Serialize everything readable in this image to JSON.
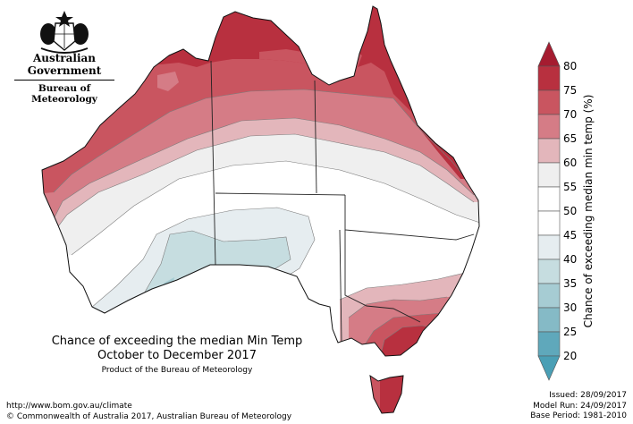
{
  "header": {
    "government": "Australian Government",
    "bureau": "Bureau of Meteorology"
  },
  "map": {
    "title_line1": "Chance of exceeding the median Min Temp",
    "title_line2": "October to December 2017",
    "product_line": "Product of the Bureau of Meteorology"
  },
  "legend": {
    "label": "Chance of exceeding median min temp (%)",
    "ticks": [
      "80",
      "75",
      "70",
      "65",
      "60",
      "55",
      "50",
      "45",
      "40",
      "35",
      "30",
      "25",
      "20"
    ],
    "colors": {
      "c75_80": "#b8303f",
      "c70_75": "#c95560",
      "c65_70": "#d57c86",
      "c60_65": "#e3b6bb",
      "c55_60": "#efefef",
      "c50_55": "#ffffff",
      "c45_50": "#ffffff",
      "c40_45": "#e6edf0",
      "c35_40": "#c6dde0",
      "c30_35": "#a6ccd3",
      "c25_30": "#85bac6",
      "c20_25": "#5fa8bb",
      "top_arrow": "#a51c30",
      "bottom_arrow": "#4a9fb5"
    }
  },
  "footer": {
    "url": "http://www.bom.gov.au/climate",
    "copyright": "© Commonwealth of Australia 2017, Australian Bureau of Meteorology",
    "issued": "Issued: 28/09/2017",
    "model_run": "Model Run: 24/09/2017",
    "base_period": "Base Period: 1981-2010"
  }
}
